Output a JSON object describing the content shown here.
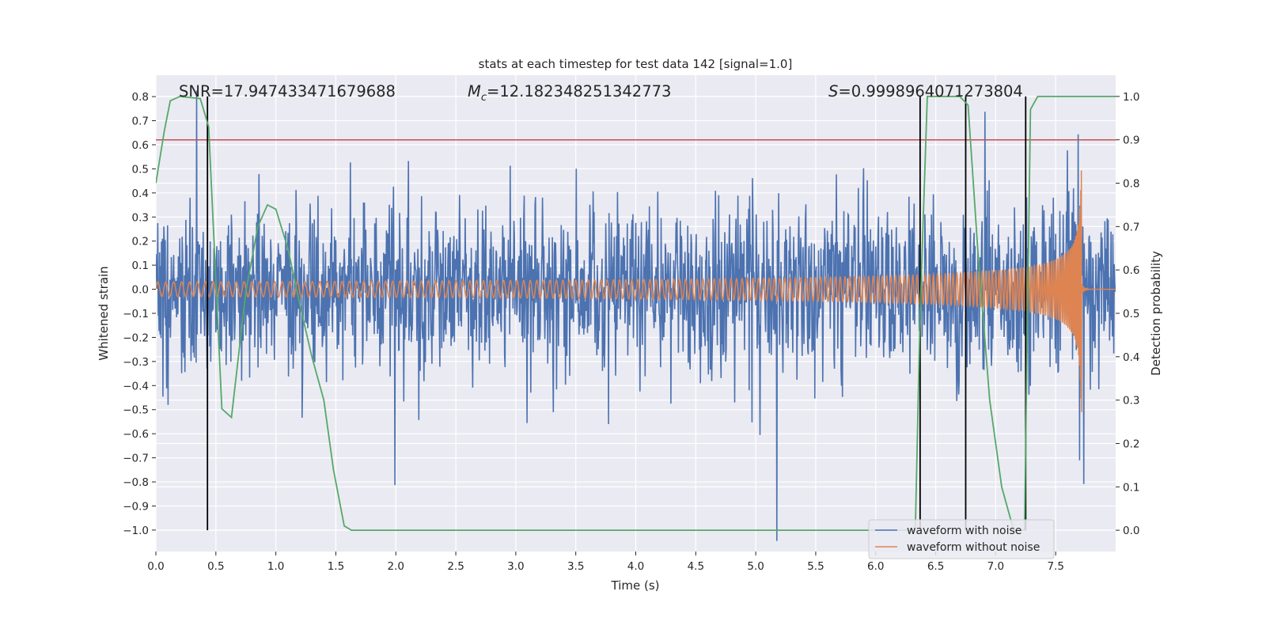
{
  "chart_data": {
    "type": "line",
    "title": "stats at each timestep for test data 142 [signal=1.0]",
    "xlabel": "Time (s)",
    "ylabel": "Whitened strain",
    "ylabel_right": "Detection probability",
    "xlim": [
      0.0,
      8.0
    ],
    "ylim": [
      -1.089,
      0.889
    ],
    "ylim_right": [
      -0.049,
      1.049
    ],
    "grid": true,
    "x_ticks": [
      "0.0",
      "0.5",
      "1.0",
      "1.5",
      "2.0",
      "2.5",
      "3.0",
      "3.5",
      "4.0",
      "4.5",
      "5.0",
      "5.5",
      "6.0",
      "6.5",
      "7.0",
      "7.5"
    ],
    "y_ticks": [
      "0.8",
      "0.7",
      "0.6",
      "0.5",
      "0.4",
      "0.3",
      "0.2",
      "0.1",
      "0.0",
      "−0.1",
      "−0.2",
      "−0.3",
      "−0.4",
      "−0.5",
      "−0.6",
      "−0.7",
      "−0.8",
      "−0.9",
      "−1.0"
    ],
    "y_ticks_right": [
      "1.0",
      "0.9",
      "0.8",
      "0.7",
      "0.6",
      "0.5",
      "0.4",
      "0.3",
      "0.2",
      "0.1",
      "0.0"
    ],
    "annotations": {
      "snr": "SNR=17.947433471679688",
      "mc_symbol": "M",
      "mc_sub": "c",
      "mc_value": "=12.182348251342773",
      "s_symbol": "S",
      "s_value": "=0.9998964071273804"
    },
    "legend": {
      "placement": "lower-right",
      "entries": [
        "waveform with noise",
        "waveform without noise"
      ]
    },
    "colors": {
      "noise": "#4c72b0",
      "clean": "#dd8452",
      "probability": "#55a868",
      "threshold": "#c44e52",
      "markers": "#000000",
      "background": "#eaeaf2"
    },
    "series": [
      {
        "name": "waveform with noise",
        "axis": "left",
        "generator": {
          "kind": "signal_plus_gaussian_noise",
          "noise_std": 0.17,
          "sample_rate": 256,
          "seed": 142
        }
      },
      {
        "name": "waveform without noise",
        "axis": "left",
        "generator": {
          "kind": "chirp",
          "merger_time": 7.72,
          "start_amplitude": 0.03,
          "start_frequency_hz": 15,
          "peak_amplitude": 0.6,
          "min_amplitude": -0.75
        }
      },
      {
        "name": "detection probability",
        "axis": "right",
        "x": [
          0.0,
          0.07,
          0.12,
          0.2,
          0.37,
          0.44,
          0.55,
          0.63,
          0.75,
          0.85,
          0.93,
          1.0,
          1.1,
          1.2,
          1.3,
          1.4,
          1.48,
          1.57,
          1.63,
          6.33,
          6.37,
          6.43,
          6.7,
          6.77,
          6.85,
          6.95,
          7.05,
          7.15,
          7.24,
          7.29,
          7.35,
          8.0
        ],
        "y": [
          0.8,
          0.92,
          0.99,
          1.0,
          0.995,
          0.93,
          0.28,
          0.26,
          0.55,
          0.7,
          0.75,
          0.74,
          0.65,
          0.52,
          0.4,
          0.3,
          0.14,
          0.01,
          0.0,
          0.0,
          0.5,
          1.0,
          1.0,
          0.98,
          0.65,
          0.3,
          0.1,
          0.0,
          0.0,
          0.97,
          1.0,
          1.0
        ]
      }
    ],
    "threshold_right": 0.9,
    "marker_times": [
      0.43,
      6.37,
      6.75,
      7.25
    ]
  }
}
